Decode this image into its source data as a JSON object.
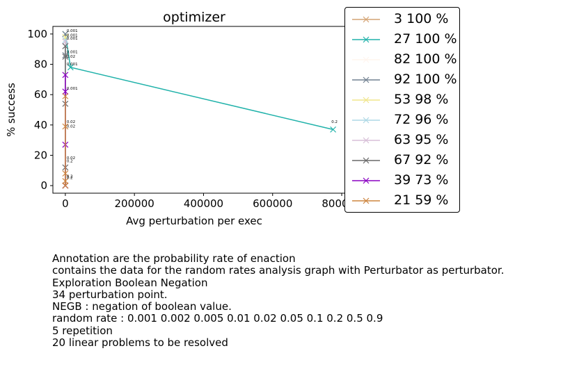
{
  "chart_data": {
    "type": "line",
    "title": "optimizer",
    "xlabel": "Avg perturbation per exec",
    "ylabel": "% success",
    "xlim": [
      -36000,
      810000
    ],
    "ylim": [
      -5,
      105
    ],
    "x_ticks": [
      0,
      200000,
      400000,
      600000,
      800000
    ],
    "x_tick_labels": [
      "0",
      "200000",
      "400000",
      "600000",
      "800000"
    ],
    "y_ticks": [
      0,
      20,
      40,
      60,
      80,
      100
    ],
    "y_tick_labels": [
      "0",
      "20",
      "40",
      "60",
      "80",
      "100"
    ],
    "legend_position": "outside-right",
    "series": [
      {
        "name": "3 100 %",
        "color": "#d4a373",
        "x": [
          0,
          0
        ],
        "y": [
          100,
          0
        ]
      },
      {
        "name": "27 100 %",
        "color": "#20b2aa",
        "x": [
          0,
          15000,
          775000
        ],
        "y": [
          100,
          78,
          37
        ]
      },
      {
        "name": "82 100 %",
        "color": "#fff5ee",
        "x": [
          0,
          0
        ],
        "y": [
          100,
          0
        ]
      },
      {
        "name": "92 100 %",
        "color": "#708090",
        "x": [
          0,
          0,
          0,
          0
        ],
        "y": [
          100,
          92,
          86,
          0
        ]
      },
      {
        "name": "53 98 %",
        "color": "#f0e68c",
        "x": [
          0,
          0
        ],
        "y": [
          98,
          0
        ]
      },
      {
        "name": "72 96 %",
        "color": "#add8e6",
        "x": [
          0,
          0
        ],
        "y": [
          96,
          0
        ]
      },
      {
        "name": "63 95 %",
        "color": "#d8bfd8",
        "x": [
          0,
          0
        ],
        "y": [
          95,
          0
        ]
      },
      {
        "name": "67 92 %",
        "color": "#696969",
        "x": [
          0,
          0,
          0,
          0,
          0
        ],
        "y": [
          92,
          85,
          54,
          12,
          0
        ]
      },
      {
        "name": "39 73 %",
        "color": "#8a00c2",
        "x": [
          0,
          0,
          0,
          0
        ],
        "y": [
          73,
          62,
          27,
          0
        ]
      },
      {
        "name": "21 59 %",
        "color": "#cd853f",
        "x": [
          0,
          0,
          0,
          0,
          0
        ],
        "y": [
          59,
          39,
          8,
          3,
          0
        ]
      }
    ],
    "annotations": [
      {
        "text": "0.001",
        "x": 0,
        "y": 100
      },
      {
        "text": "0.001",
        "x": 0,
        "y": 97
      },
      {
        "text": "0.001",
        "x": 0,
        "y": 95
      },
      {
        "text": "0.001",
        "x": 0,
        "y": 86
      },
      {
        "text": "0.02",
        "x": 0,
        "y": 83
      },
      {
        "text": "0.001",
        "x": 0,
        "y": 78
      },
      {
        "text": "0.001",
        "x": 0,
        "y": 62
      },
      {
        "text": "0.02",
        "x": 0,
        "y": 40
      },
      {
        "text": "0.02",
        "x": 0,
        "y": 37
      },
      {
        "text": "0.02",
        "x": 0,
        "y": 16
      },
      {
        "text": "0.2",
        "x": 0,
        "y": 14
      },
      {
        "text": "0.2",
        "x": 0,
        "y": 4
      },
      {
        "text": "0.2",
        "x": 0,
        "y": 3
      },
      {
        "text": "0.2",
        "x": 775000,
        "y": 40
      }
    ]
  },
  "caption_lines": [
    "Annotation are the probability rate of enaction",
    "contains the data for the random rates analysis graph with Perturbator as perturbator.",
    "Exploration Boolean Negation",
    "34 perturbation point.",
    "NEGB : negation of boolean value.",
    "random rate : 0.001 0.002 0.005 0.01 0.02 0.05 0.1 0.2 0.5 0.9",
    "5 repetition",
    "20 linear problems to be resolved"
  ]
}
